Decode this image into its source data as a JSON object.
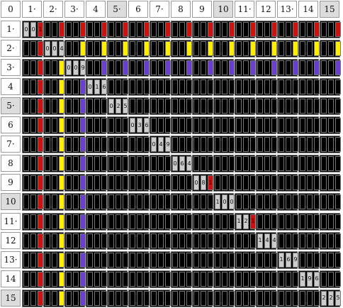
{
  "corner_label": "0",
  "col_headers": [
    "1·",
    "2·",
    "3·",
    "4",
    "5·",
    "6",
    "7·",
    "8",
    "9",
    "10",
    "11·",
    "12",
    "13·",
    "14",
    "15"
  ],
  "row_headers": [
    "1·",
    "2·",
    "3·",
    "4",
    "5·",
    "6",
    "7·",
    "8",
    "9",
    "10",
    "11·",
    "12",
    "13·",
    "14",
    "15"
  ],
  "highlighted_col_headers": [
    5,
    10,
    15
  ],
  "highlighted_row_headers": [
    5,
    10,
    15
  ],
  "digit_colors": {
    "1": "#cc1111",
    "4": "#ffee00",
    "9": "#6a3fd0",
    "0": "#bbbbbb",
    "2": "#bbbbbb",
    "3": "#bbbbbb",
    "5": "#bbbbbb",
    "6": "#bbbbbb",
    "7": "#bbbbbb",
    "8": "#bbbbbb",
    "blank": "#000000"
  },
  "squares": [
    "001",
    "004",
    "009",
    "016",
    "025",
    "036",
    "049",
    "064",
    "081",
    "100",
    "121",
    "144",
    "169",
    "196",
    "225"
  ],
  "cells": [
    [
      "001",
      "001",
      "001",
      "001",
      "001",
      "001",
      "001",
      "001",
      "001",
      "001",
      "001",
      "001",
      "001",
      "001",
      "001"
    ],
    [
      "001",
      "004",
      "004",
      "004",
      "004",
      "004",
      "004",
      "004",
      "004",
      "004",
      "004",
      "004",
      "004",
      "004",
      "004"
    ],
    [
      "001",
      "004",
      "009",
      "009",
      "009",
      "009",
      "009",
      "009",
      "009",
      "009",
      "009",
      "009",
      "009",
      "009",
      "009"
    ],
    [
      "001",
      "004",
      "009",
      "016",
      "",
      "",
      "",
      "",
      "",
      "",
      "",
      "",
      "",
      "",
      ""
    ],
    [
      "001",
      "004",
      "009",
      "",
      "025",
      "",
      "",
      "",
      "",
      "",
      "",
      "",
      "",
      "",
      ""
    ],
    [
      "001",
      "004",
      "009",
      "",
      "",
      "036",
      "",
      "",
      "",
      "",
      "",
      "",
      "",
      "",
      ""
    ],
    [
      "001",
      "004",
      "009",
      "",
      "",
      "",
      "049",
      "",
      "",
      "",
      "",
      "",
      "",
      "",
      ""
    ],
    [
      "001",
      "004",
      "009",
      "",
      "",
      "",
      "",
      "064",
      "",
      "",
      "",
      "",
      "",
      "",
      ""
    ],
    [
      "001",
      "004",
      "009",
      "",
      "",
      "",
      "",
      "",
      "081",
      "",
      "",
      "",
      "",
      "",
      ""
    ],
    [
      "001",
      "004",
      "009",
      "",
      "",
      "",
      "",
      "",
      "",
      "100",
      "",
      "",
      "",
      "",
      ""
    ],
    [
      "001",
      "004",
      "009",
      "",
      "",
      "",
      "",
      "",
      "",
      "",
      "121",
      "",
      "",
      "",
      ""
    ],
    [
      "001",
      "004",
      "009",
      "",
      "",
      "",
      "",
      "",
      "",
      "",
      "",
      "144",
      "",
      "",
      ""
    ],
    [
      "001",
      "004",
      "009",
      "",
      "",
      "",
      "",
      "",
      "",
      "",
      "",
      "",
      "169",
      "",
      ""
    ],
    [
      "001",
      "004",
      "009",
      "",
      "",
      "",
      "",
      "",
      "",
      "",
      "",
      "",
      "",
      "196",
      ""
    ],
    [
      "001",
      "004",
      "009",
      "",
      "",
      "",
      "",
      "",
      "",
      "",
      "",
      "",
      "",
      "",
      "225"
    ]
  ]
}
